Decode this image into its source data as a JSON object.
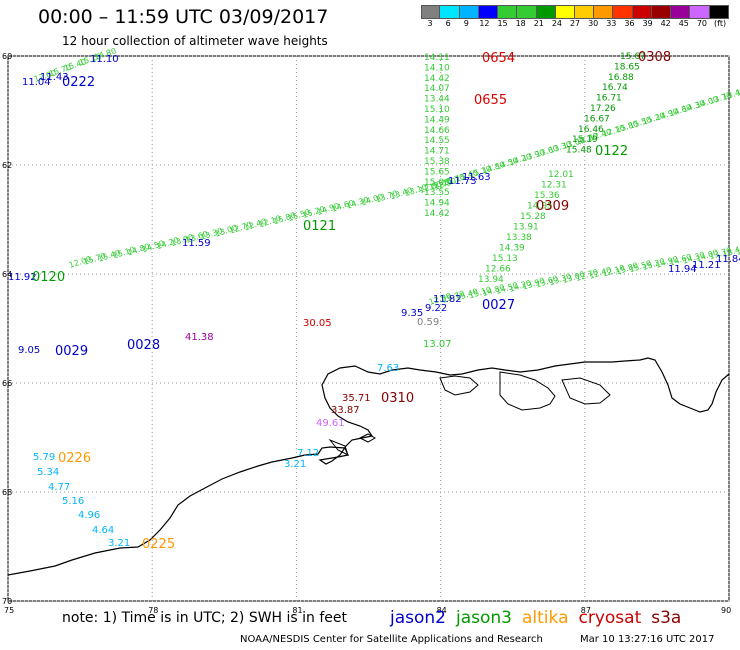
{
  "header": {
    "title": "00:00 – 11:59 UTC 03/09/2017",
    "subtitle": "12 hour collection of altimeter wave heights"
  },
  "color_scale": {
    "labels": [
      "3",
      "6",
      "9",
      "12",
      "15",
      "18",
      "21",
      "24",
      "27",
      "30",
      "33",
      "36",
      "39",
      "42",
      "45",
      "70",
      "(ft)"
    ],
    "colors": [
      "#808080",
      "#00e5ff",
      "#00b4ff",
      "#0000ff",
      "#33cc33",
      "#33cc33",
      "#009900",
      "#ffff00",
      "#ffcc00",
      "#ff9900",
      "#ff3300",
      "#cc0000",
      "#990000",
      "#990099",
      "#cc66ff",
      "#000000"
    ]
  },
  "map": {
    "lon_labels": [
      "75",
      "78",
      "81",
      "84",
      "87",
      "90"
    ],
    "lat_labels": [
      "60",
      "62",
      "64",
      "66",
      "68",
      "70"
    ],
    "lon_range": [
      75,
      90
    ],
    "lat_range": [
      60,
      70
    ],
    "track_labels": [
      {
        "text": "0222",
        "color": "#0000cc"
      },
      {
        "text": "0654",
        "color": "#dd0000"
      },
      {
        "text": "0655",
        "color": "#dd0000"
      },
      {
        "text": "0308",
        "color": "#880000"
      },
      {
        "text": "0122",
        "color": "#009900"
      },
      {
        "text": "0121",
        "color": "#009900"
      },
      {
        "text": "0309",
        "color": "#880000"
      },
      {
        "text": "0120",
        "color": "#009900"
      },
      {
        "text": "0027",
        "color": "#0000cc"
      },
      {
        "text": "0029",
        "color": "#0000cc"
      },
      {
        "text": "0028",
        "color": "#0000cc"
      },
      {
        "text": "0310",
        "color": "#880000"
      },
      {
        "text": "0226",
        "color": "#ff9900"
      },
      {
        "text": "0225",
        "color": "#ff9900"
      }
    ],
    "misc_values": [
      {
        "text": "11.10",
        "color": "#0000cc"
      },
      {
        "text": "11.43",
        "color": "#0000cc"
      },
      {
        "text": "11.04",
        "color": "#0000cc"
      },
      {
        "text": "11.59",
        "color": "#0000cc"
      },
      {
        "text": "11.92",
        "color": "#0000cc"
      },
      {
        "text": "11.73",
        "color": "#0000cc"
      },
      {
        "text": "11.63",
        "color": "#0000cc"
      },
      {
        "text": "11.82",
        "color": "#0000cc"
      },
      {
        "text": "9.35",
        "color": "#0000cc"
      },
      {
        "text": "9.22",
        "color": "#0000cc"
      },
      {
        "text": "11.94",
        "color": "#0000cc"
      },
      {
        "text": "11.21",
        "color": "#0000cc"
      },
      {
        "text": "11.84",
        "color": "#0000cc"
      },
      {
        "text": "9.05",
        "color": "#0000cc"
      },
      {
        "text": "41.38",
        "color": "#990099"
      },
      {
        "text": "30.05",
        "color": "#cc0000"
      },
      {
        "text": "0.59",
        "color": "#808080"
      },
      {
        "text": "13.07",
        "color": "#33cc33"
      },
      {
        "text": "7.63",
        "color": "#00b4ff"
      },
      {
        "text": "35.71",
        "color": "#880000"
      },
      {
        "text": "33.87",
        "color": "#880000"
      },
      {
        "text": "49.61",
        "color": "#cc66ff"
      },
      {
        "text": "7.12",
        "color": "#00b4ff"
      },
      {
        "text": "3.21",
        "color": "#00b4ff"
      },
      {
        "text": "5.79",
        "color": "#00b4ff"
      },
      {
        "text": "5.34",
        "color": "#00b4ff"
      },
      {
        "text": "4.77",
        "color": "#00b4ff"
      },
      {
        "text": "5.16",
        "color": "#00b4ff"
      },
      {
        "text": "4.96",
        "color": "#00b4ff"
      },
      {
        "text": "4.64",
        "color": "#00b4ff"
      },
      {
        "text": "3.21",
        "color": "#00b4ff"
      }
    ],
    "col_0654": [
      "14.11",
      "14.10",
      "14.42",
      "14.07",
      "13.44",
      "15.10",
      "14.49",
      "14.66",
      "14.55",
      "14.71",
      "15.38",
      "15.65",
      "15.06",
      "13.55",
      "14.94",
      "14.42"
    ],
    "col_0308": [
      "15.67",
      "18.65",
      "16.88",
      "16.74",
      "16.71",
      "17.26",
      "16.67",
      "16.46",
      "15.19",
      "15.48"
    ],
    "col_0309": [
      "12.01",
      "12.31",
      "15.36",
      "14.95",
      "15.28",
      "13.91",
      "13.38",
      "14.39",
      "15.13",
      "12.66",
      "13.94"
    ]
  },
  "footer": {
    "note": "note: 1) Time is in UTC; 2) SWH is in feet",
    "satellites": [
      {
        "name": "jason2",
        "color": "#0000cc"
      },
      {
        "name": "jason3",
        "color": "#009900"
      },
      {
        "name": "altika",
        "color": "#ff9900"
      },
      {
        "name": "cryosat",
        "color": "#cc0000"
      },
      {
        "name": "s3a",
        "color": "#880000"
      }
    ],
    "credit": "NOAA/NESDIS Center for Satellite Applications and Research",
    "timestamp": "Mar 10 13:27:16 UTC 2017"
  }
}
